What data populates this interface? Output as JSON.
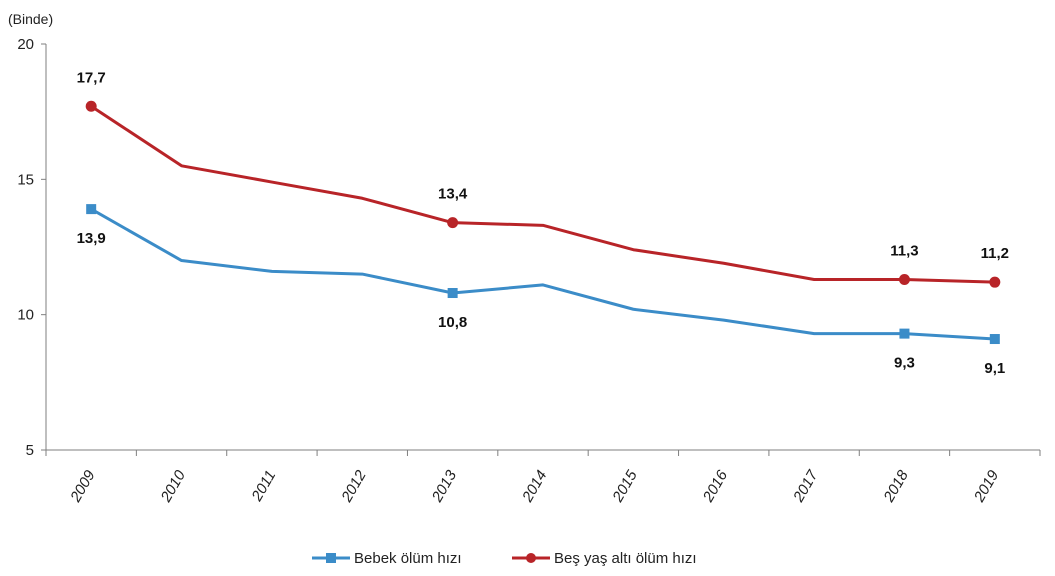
{
  "chart_data": {
    "type": "line",
    "unit_label": "(Binde)",
    "categories": [
      "2009",
      "2010",
      "2011",
      "2012",
      "2013",
      "2014",
      "2015",
      "2016",
      "2017",
      "2018",
      "2019"
    ],
    "ylim": [
      5,
      20
    ],
    "yticks": [
      "5",
      "10",
      "15",
      "20"
    ],
    "grid": false,
    "legend_position": "bottom",
    "series": [
      {
        "name": "Bebek ölüm hızı",
        "color": "#3b8cc8",
        "marker": "square",
        "values": [
          13.9,
          12.0,
          11.6,
          11.5,
          10.8,
          11.1,
          10.2,
          9.8,
          9.3,
          9.3,
          9.1
        ],
        "data_labels": [
          {
            "index": 0,
            "text": "13,9"
          },
          {
            "index": 4,
            "text": "10,8"
          },
          {
            "index": 9,
            "text": "9,3"
          },
          {
            "index": 10,
            "text": "9,1"
          }
        ]
      },
      {
        "name": "Beş yaş altı ölüm hızı",
        "color": "#b82428",
        "marker": "circle",
        "values": [
          17.7,
          15.5,
          14.9,
          14.3,
          13.4,
          13.3,
          12.4,
          11.9,
          11.3,
          11.3,
          11.2
        ],
        "data_labels": [
          {
            "index": 0,
            "text": "17,7"
          },
          {
            "index": 4,
            "text": "13,4"
          },
          {
            "index": 9,
            "text": "11,3"
          },
          {
            "index": 10,
            "text": "11,2"
          }
        ]
      }
    ]
  }
}
